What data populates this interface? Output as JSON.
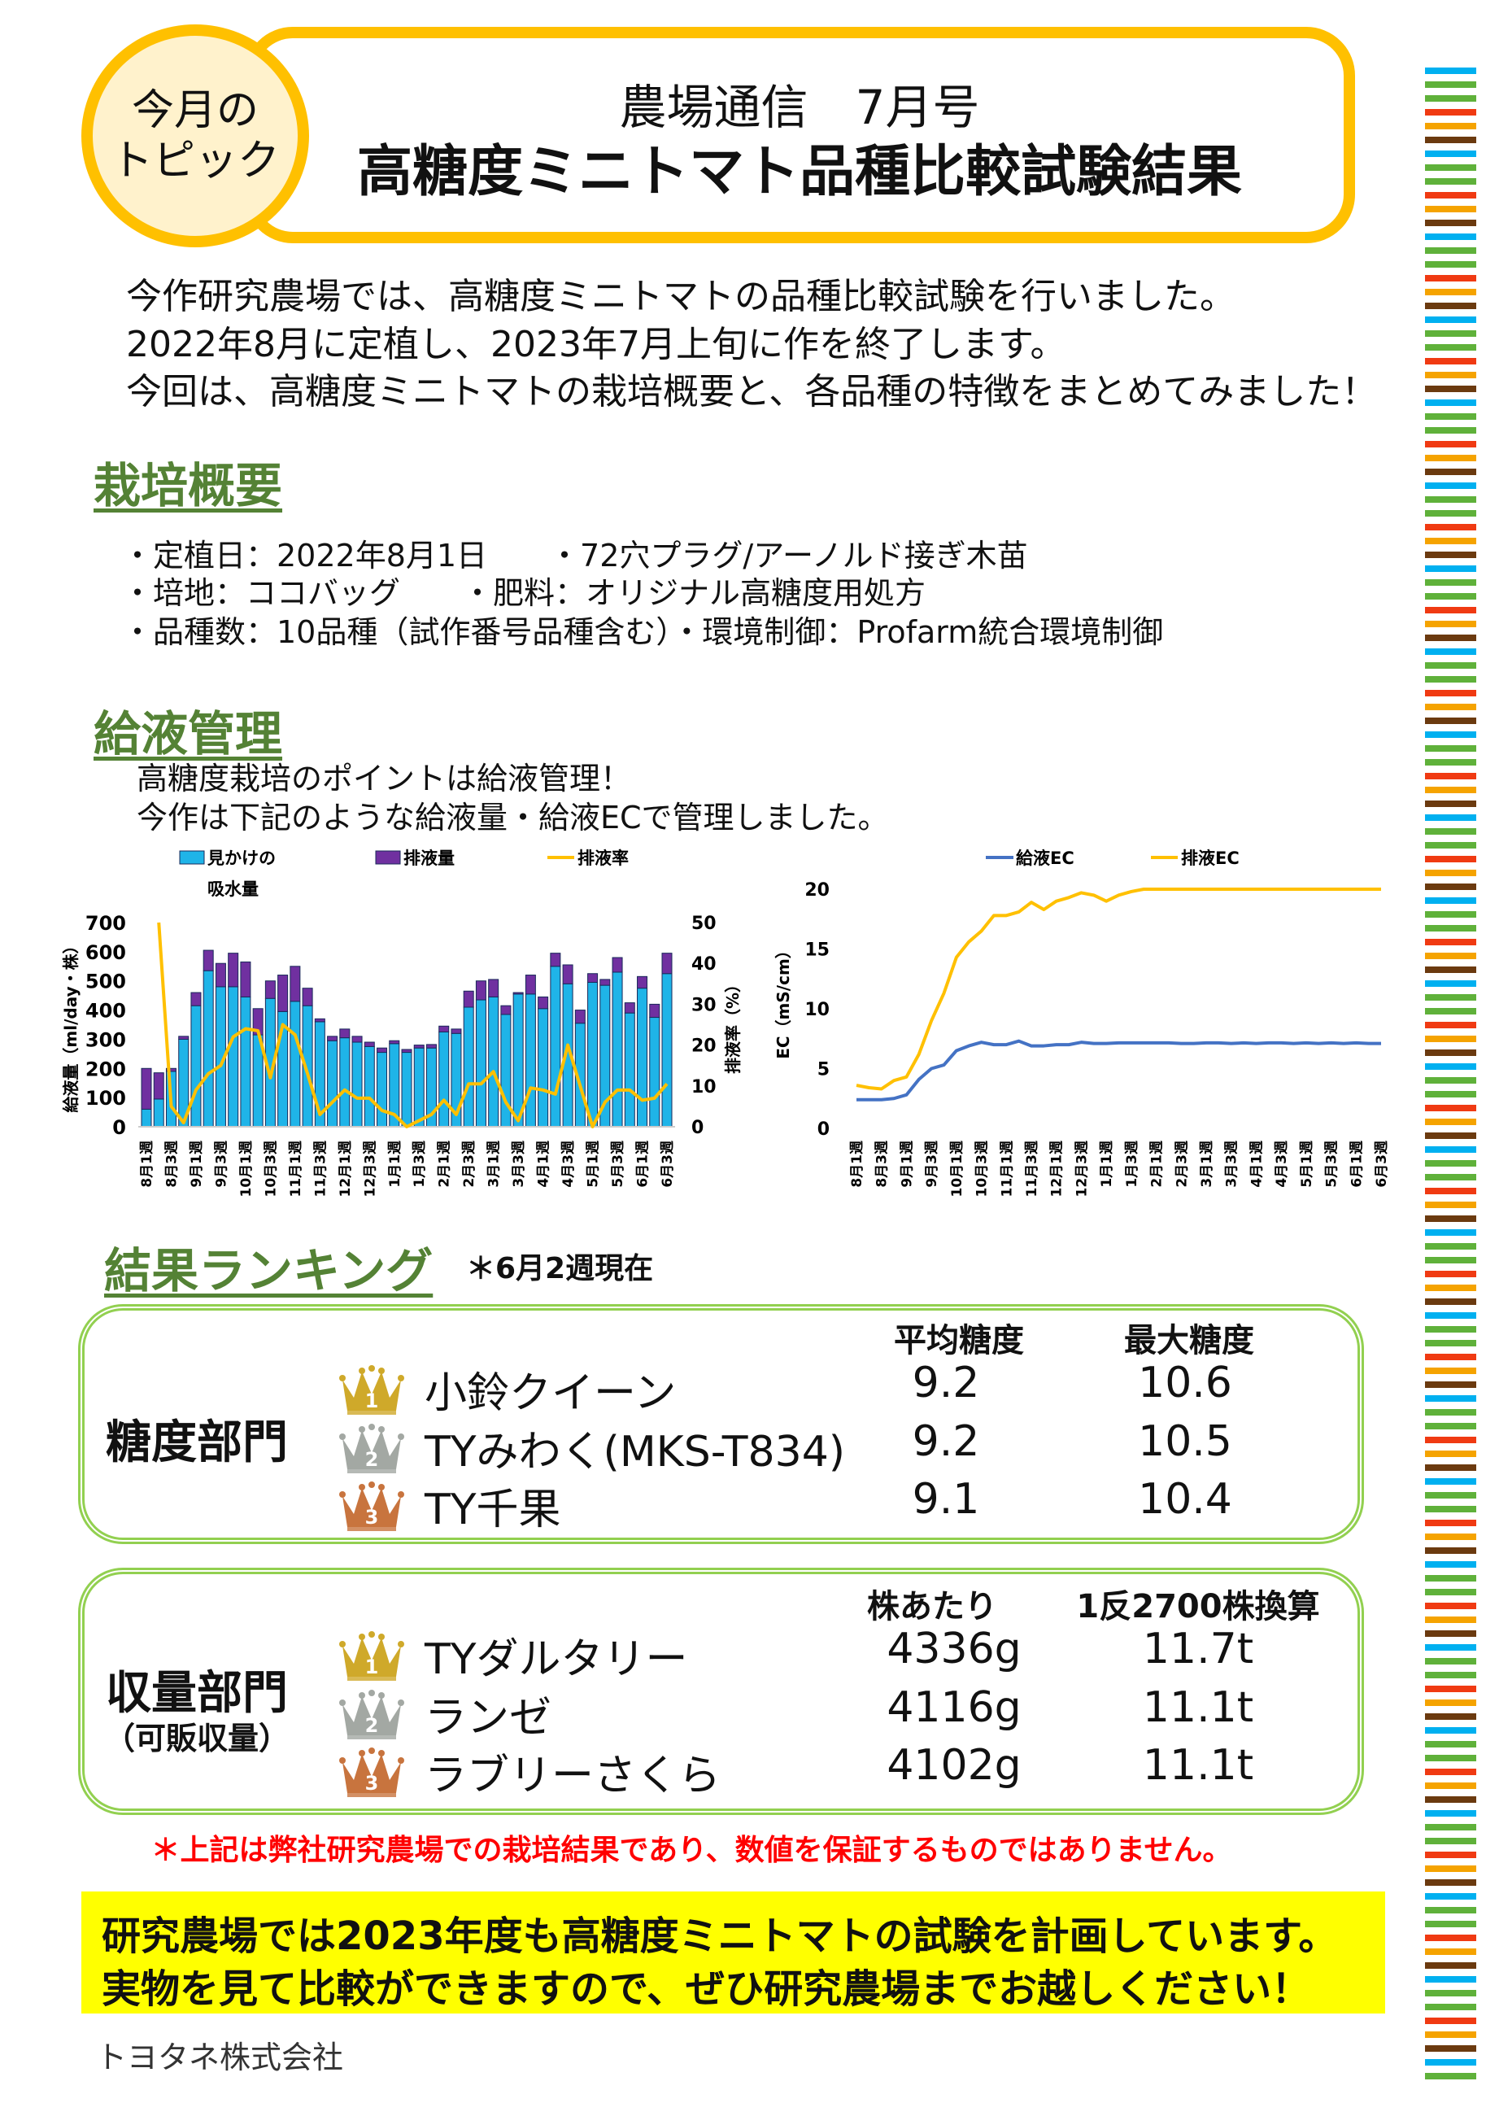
{
  "header": {
    "topic_line1": "今月の",
    "topic_line2": "トピック",
    "issue": "農場通信　7月号",
    "title": "高糖度ミニトマト品種比較試験結果"
  },
  "intro": [
    "今作研究農場では、高糖度ミニトマトの品種比較試験を行いました。",
    "2022年8月に定植し、2023年7月上旬に作を終了します。",
    "今回は、高糖度ミニトマトの栽培概要と、各品種の特徴をまとめてみました！"
  ],
  "cultivation": {
    "heading": "栽培概要",
    "lines": [
      "・定植日：2022年8月1日　　・72穴プラグ/アーノルド接ぎ木苗",
      "・培地：ココバッグ　　・肥料：オリジナル高糖度用処方",
      "・品種数：10品種（試作番号品種含む）・環境制御：Profarm統合環境制御"
    ]
  },
  "irrigation": {
    "heading": "給液管理",
    "lines": [
      "高糖度栽培のポイントは給液管理！",
      "今作は下記のような給液量・給液ECで管理しました。"
    ]
  },
  "chart_data": [
    {
      "type": "bar",
      "title": "",
      "legend": [
        "見かけの吸水量",
        "排液量",
        "排液率"
      ],
      "legend_line1": "見かけの",
      "legend_line2": "吸水量",
      "ylabel": "給液量（ml/day・株）",
      "y2label": "排液率（%）",
      "ylim": [
        0,
        700
      ],
      "y2lim": [
        0,
        50
      ],
      "yticks": [
        "0",
        "100",
        "200",
        "300",
        "400",
        "500",
        "600",
        "700"
      ],
      "y2ticks": [
        "0",
        "10",
        "20",
        "30",
        "40",
        "50"
      ],
      "xtick_labels": [
        "8月1週",
        "8月3週",
        "9月1週",
        "9月3週",
        "10月1週",
        "10月3週",
        "11月1週",
        "11月3週",
        "12月1週",
        "12月3週",
        "1月1週",
        "1月3週",
        "2月1週",
        "2月3週",
        "3月1週",
        "3月3週",
        "4月1週",
        "4月3週",
        "5月1週",
        "5月3週",
        "6月1週",
        "6月3週"
      ],
      "series": [
        {
          "name": "見かけの吸水量",
          "type": "stacked-bar",
          "color": "#1FB4E8",
          "values": [
            60,
            95,
            190,
            300,
            415,
            535,
            480,
            480,
            445,
            315,
            440,
            395,
            430,
            415,
            360,
            295,
            305,
            290,
            275,
            255,
            285,
            255,
            270,
            270,
            325,
            320,
            410,
            435,
            445,
            385,
            455,
            455,
            405,
            550,
            490,
            355,
            495,
            485,
            530,
            390,
            475,
            375,
            525
          ]
        },
        {
          "name": "排液量",
          "type": "stacked-bar",
          "color": "#7030A0",
          "values": [
            140,
            90,
            10,
            10,
            45,
            70,
            80,
            115,
            120,
            90,
            60,
            125,
            120,
            60,
            10,
            15,
            30,
            20,
            15,
            15,
            10,
            10,
            10,
            12,
            20,
            15,
            55,
            65,
            60,
            30,
            5,
            65,
            40,
            45,
            65,
            45,
            30,
            20,
            50,
            35,
            40,
            45,
            70
          ]
        },
        {
          "name": "排液率",
          "type": "line",
          "axis": "right",
          "color": "#FFC000",
          "values": [
            null,
            50,
            5,
            1,
            9,
            13,
            15,
            22,
            24,
            23.5,
            12,
            25,
            22.5,
            13,
            3,
            6,
            9,
            7,
            7,
            4,
            3,
            0,
            1.5,
            3,
            6.5,
            3,
            10.5,
            10.5,
            13.5,
            6,
            1.5,
            9.5,
            9,
            8,
            20,
            10,
            0,
            6,
            9,
            9,
            6.5,
            7,
            10.5
          ]
        }
      ]
    },
    {
      "type": "line",
      "title": "",
      "legend": [
        "給液EC",
        "排液EC"
      ],
      "ylabel": "EC（mS/cm）",
      "ylim": [
        0,
        20
      ],
      "yticks": [
        "0",
        "5",
        "10",
        "15",
        "20"
      ],
      "xtick_labels": [
        "8月1週",
        "8月3週",
        "9月1週",
        "9月3週",
        "10月1週",
        "10月3週",
        "11月1週",
        "11月3週",
        "12月1週",
        "12月3週",
        "1月1週",
        "1月3週",
        "2月1週",
        "2月3週",
        "3月1週",
        "3月3週",
        "4月1週",
        "4月3週",
        "5月1週",
        "5月3週",
        "6月1週",
        "6月3週"
      ],
      "series": [
        {
          "name": "給液EC",
          "color": "#4472C4",
          "values": [
            2.4,
            2.4,
            2.4,
            2.5,
            2.8,
            4.1,
            5.0,
            5.3,
            6.5,
            6.9,
            7.2,
            7.0,
            7.0,
            7.3,
            6.9,
            6.9,
            7.0,
            7.0,
            7.2,
            7.1,
            7.1,
            7.15,
            7.15,
            7.15,
            7.15,
            7.15,
            7.1,
            7.1,
            7.15,
            7.15,
            7.1,
            7.15,
            7.1,
            7.15,
            7.15,
            7.1,
            7.15,
            7.1,
            7.15,
            7.1,
            7.15,
            7.1,
            7.1
          ]
        },
        {
          "name": "排液EC",
          "color": "#FFC000",
          "values": [
            3.6,
            3.4,
            3.3,
            4.0,
            4.3,
            6.2,
            9.0,
            11.3,
            14.3,
            15.6,
            16.5,
            17.8,
            17.8,
            18.1,
            18.9,
            18.3,
            19.0,
            19.3,
            19.7,
            19.5,
            19.0,
            19.5,
            19.8,
            20,
            20,
            20,
            20,
            20,
            20,
            20,
            20,
            20,
            20,
            20,
            20,
            20,
            20,
            20,
            20,
            20,
            20,
            20,
            20
          ]
        }
      ]
    }
  ],
  "ranking": {
    "heading": "結果ランキング",
    "note": "＊6月2週現在",
    "sugar": {
      "dept": "糖度部門",
      "col1": "平均糖度",
      "col2": "最大糖度",
      "rows": [
        {
          "rank": "1",
          "name": "小鈴クイーン",
          "v1": "9.2",
          "v2": "10.6"
        },
        {
          "rank": "2",
          "name": "TYみわく(MKS-T834)",
          "v1": "9.2",
          "v2": "10.5"
        },
        {
          "rank": "3",
          "name": "TY千果",
          "v1": "9.1",
          "v2": "10.4"
        }
      ]
    },
    "yield": {
      "dept": "収量部門",
      "dept_sub": "（可販収量）",
      "col1": "株あたり",
      "col2": "1反2700株換算",
      "rows": [
        {
          "rank": "1",
          "name": "TYダルタリー",
          "v1": "4336g",
          "v2": "11.7t"
        },
        {
          "rank": "2",
          "name": "ランゼ",
          "v1": "4116g",
          "v2": "11.1t"
        },
        {
          "rank": "3",
          "name": "ラブリーさくら",
          "v1": "4102g",
          "v2": "11.1t"
        }
      ]
    },
    "disclaimer": "＊上記は弊社研究農場での栽培結果であり、数値を保証するものではありません。"
  },
  "callout": {
    "line1": "研究農場では2023年度も高糖度ミニトマトの試験を計画しています。",
    "line2": "実物を見て比較ができますので、ぜひ研究農場までお越しください！"
  },
  "footer": {
    "company": "トヨタネ株式会社"
  },
  "colors": {
    "accent_yellow": "#FFC000",
    "heading_green": "#548235",
    "box_green": "#92D050",
    "callout_bg": "#FFFF00",
    "disclaimer_red": "#FF0000",
    "stripes": [
      "#00B0F0",
      "#5FB13A",
      "#5FB13A",
      "#F03A12",
      "#F5A300",
      "#6B3A0F"
    ],
    "crowns": [
      "#CFA92A",
      "#A3A8A3",
      "#C8743E"
    ]
  }
}
